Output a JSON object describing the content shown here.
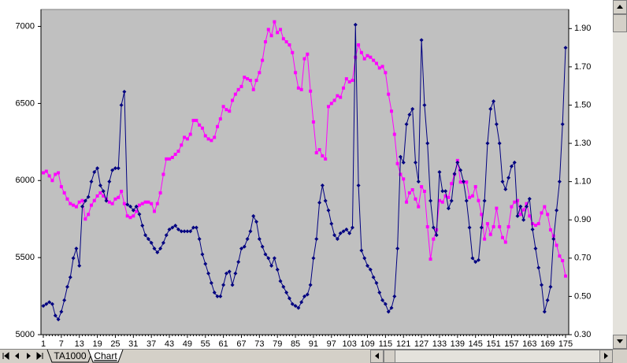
{
  "chart_data": {
    "type": "line",
    "categories": [
      1,
      null,
      null,
      null,
      null,
      null,
      7,
      null,
      null,
      null,
      null,
      null,
      13,
      null,
      null,
      null,
      null,
      null,
      19,
      null,
      null,
      null,
      null,
      null,
      25,
      null,
      null,
      null,
      null,
      null,
      31,
      null,
      null,
      null,
      null,
      null,
      37,
      null,
      null,
      null,
      null,
      null,
      43,
      null,
      null,
      null,
      null,
      null,
      49,
      null,
      null,
      null,
      null,
      null,
      55,
      null,
      null,
      null,
      null,
      null,
      61,
      null,
      null,
      null,
      null,
      null,
      67,
      null,
      null,
      null,
      null,
      null,
      73,
      null,
      null,
      null,
      null,
      null,
      79,
      null,
      null,
      null,
      null,
      null,
      85,
      null,
      null,
      null,
      null,
      null,
      91,
      null,
      null,
      null,
      null,
      null,
      97,
      null,
      null,
      null,
      null,
      null,
      103,
      null,
      null,
      null,
      null,
      null,
      109,
      null,
      null,
      null,
      null,
      null,
      115,
      null,
      null,
      null,
      null,
      null,
      121,
      null,
      null,
      null,
      null,
      null,
      127,
      null,
      null,
      null,
      null,
      null,
      133,
      null,
      null,
      null,
      null,
      null,
      139,
      null,
      null,
      null,
      null,
      null,
      145,
      null,
      null,
      null,
      null,
      null,
      151,
      null,
      null,
      null,
      null,
      null,
      157,
      null,
      null,
      null,
      null,
      null,
      163,
      null,
      null,
      null,
      null,
      null,
      169,
      null,
      null,
      null,
      null,
      null,
      175
    ],
    "series": [
      {
        "color": "#ff00ff",
        "marker": "square",
        "values": [
          6050,
          6060,
          6030,
          6000,
          6040,
          6050,
          5960,
          5920,
          5880,
          5850,
          5840,
          5830,
          5860,
          5870,
          5750,
          5780,
          5840,
          5870,
          5900,
          5920,
          5900,
          5880,
          5860,
          5850,
          5880,
          5890,
          5930,
          5850,
          5770,
          5760,
          5770,
          5800,
          5840,
          5850,
          5860,
          5860,
          5850,
          5800,
          5850,
          5920,
          6040,
          6140,
          6140,
          6150,
          6170,
          6190,
          6230,
          6280,
          6270,
          6300,
          6390,
          6390,
          6360,
          6340,
          6290,
          6270,
          6260,
          6280,
          6350,
          6400,
          6480,
          6460,
          6450,
          6520,
          6560,
          6590,
          6610,
          6670,
          6660,
          6650,
          6590,
          6650,
          6700,
          6780,
          6900,
          6980,
          6940,
          7030,
          6960,
          6980,
          6920,
          6900,
          6880,
          6830,
          6700,
          6600,
          6590,
          6790,
          6820,
          6580,
          6380,
          6180,
          6200,
          6160,
          6140,
          6480,
          6500,
          6520,
          6550,
          6540,
          6600,
          6660,
          6640,
          6650,
          6800,
          6880,
          6830,
          6790,
          6810,
          6800,
          6780,
          6760,
          6730,
          6740,
          6700,
          6560,
          6450,
          6300,
          6110,
          6040,
          6010,
          5860,
          5920,
          5940,
          5880,
          5830,
          5960,
          5930,
          5700,
          5490,
          5620,
          5680,
          5870,
          5860,
          5900,
          5890,
          5980,
          6040,
          6130,
          5990,
          5990,
          5990,
          5890,
          5900,
          5960,
          5870,
          5780,
          5620,
          5720,
          5650,
          5700,
          5820,
          5700,
          5630,
          5600,
          5700,
          5830,
          5860,
          5870,
          5780,
          5810,
          5850,
          5770,
          5720,
          5710,
          5720,
          5790,
          5830,
          5780,
          5680,
          5640,
          5580,
          5510,
          5480,
          5380
        ]
      },
      {
        "color": "#000080",
        "marker": "diamond",
        "axis": "y2",
        "values": [
          0.45,
          0.46,
          0.47,
          0.46,
          0.4,
          0.38,
          0.42,
          0.48,
          0.55,
          0.6,
          0.7,
          0.75,
          0.66,
          0.97,
          1.0,
          1.02,
          1.1,
          1.15,
          1.17,
          1.08,
          1.05,
          1.0,
          1.1,
          1.16,
          1.17,
          1.17,
          1.5,
          1.57,
          0.98,
          0.97,
          0.95,
          0.97,
          0.93,
          0.87,
          0.82,
          0.8,
          0.78,
          0.75,
          0.73,
          0.75,
          0.78,
          0.82,
          0.85,
          0.86,
          0.87,
          0.85,
          0.84,
          0.84,
          0.84,
          0.84,
          0.86,
          0.86,
          0.8,
          0.72,
          0.67,
          0.62,
          0.57,
          0.52,
          0.5,
          0.5,
          0.56,
          0.62,
          0.63,
          0.56,
          0.62,
          0.68,
          0.75,
          0.76,
          0.8,
          0.84,
          0.92,
          0.89,
          0.8,
          0.76,
          0.72,
          0.7,
          0.66,
          0.7,
          0.64,
          0.58,
          0.55,
          0.52,
          0.49,
          0.46,
          0.45,
          0.44,
          0.47,
          0.5,
          0.51,
          0.56,
          0.7,
          0.8,
          0.99,
          1.08,
          1.0,
          0.95,
          0.88,
          0.82,
          0.8,
          0.83,
          0.84,
          0.85,
          0.83,
          0.86,
          1.92,
          1.08,
          0.74,
          0.7,
          0.66,
          0.64,
          0.6,
          0.57,
          0.52,
          0.48,
          0.46,
          0.42,
          0.44,
          0.5,
          0.75,
          1.23,
          1.2,
          1.4,
          1.45,
          1.48,
          1.2,
          1.1,
          1.84,
          1.5,
          1.3,
          1.0,
          0.86,
          0.82,
          1.15,
          1.05,
          1.05,
          0.96,
          1.0,
          1.14,
          1.2,
          1.16,
          1.1,
          1.0,
          0.86,
          0.7,
          0.68,
          0.69,
          0.86,
          1.0,
          1.3,
          1.48,
          1.52,
          1.4,
          1.3,
          1.1,
          1.06,
          1.12,
          1.18,
          1.2,
          0.92,
          0.97,
          0.9,
          0.97,
          1.01,
          0.85,
          0.75,
          0.65,
          0.56,
          0.42,
          0.48,
          0.55,
          0.8,
          0.95,
          1.1,
          1.4,
          1.8
        ]
      }
    ],
    "ylim": [
      5000,
      7110
    ],
    "yticks": [
      5000,
      5500,
      6000,
      6500,
      7000
    ],
    "y2lim": [
      0.3,
      2.0
    ],
    "y2ticks": [
      {
        "value": 0.3,
        "label": "0.30"
      },
      {
        "value": 0.5,
        "label": "0.50"
      },
      {
        "value": 0.7,
        "label": "0.70"
      },
      {
        "value": 0.9,
        "label": "0.90"
      },
      {
        "value": 1.1,
        "label": "1.10"
      },
      {
        "value": 1.3,
        "label": "1.30"
      },
      {
        "value": 1.5,
        "label": "1.50"
      },
      {
        "value": 1.7,
        "label": "1.70"
      },
      {
        "value": 1.9,
        "label": "1.90"
      }
    ],
    "grid": false,
    "plot_background": "#c0c0c0"
  },
  "tabs": [
    "TA1000",
    "Chart"
  ]
}
